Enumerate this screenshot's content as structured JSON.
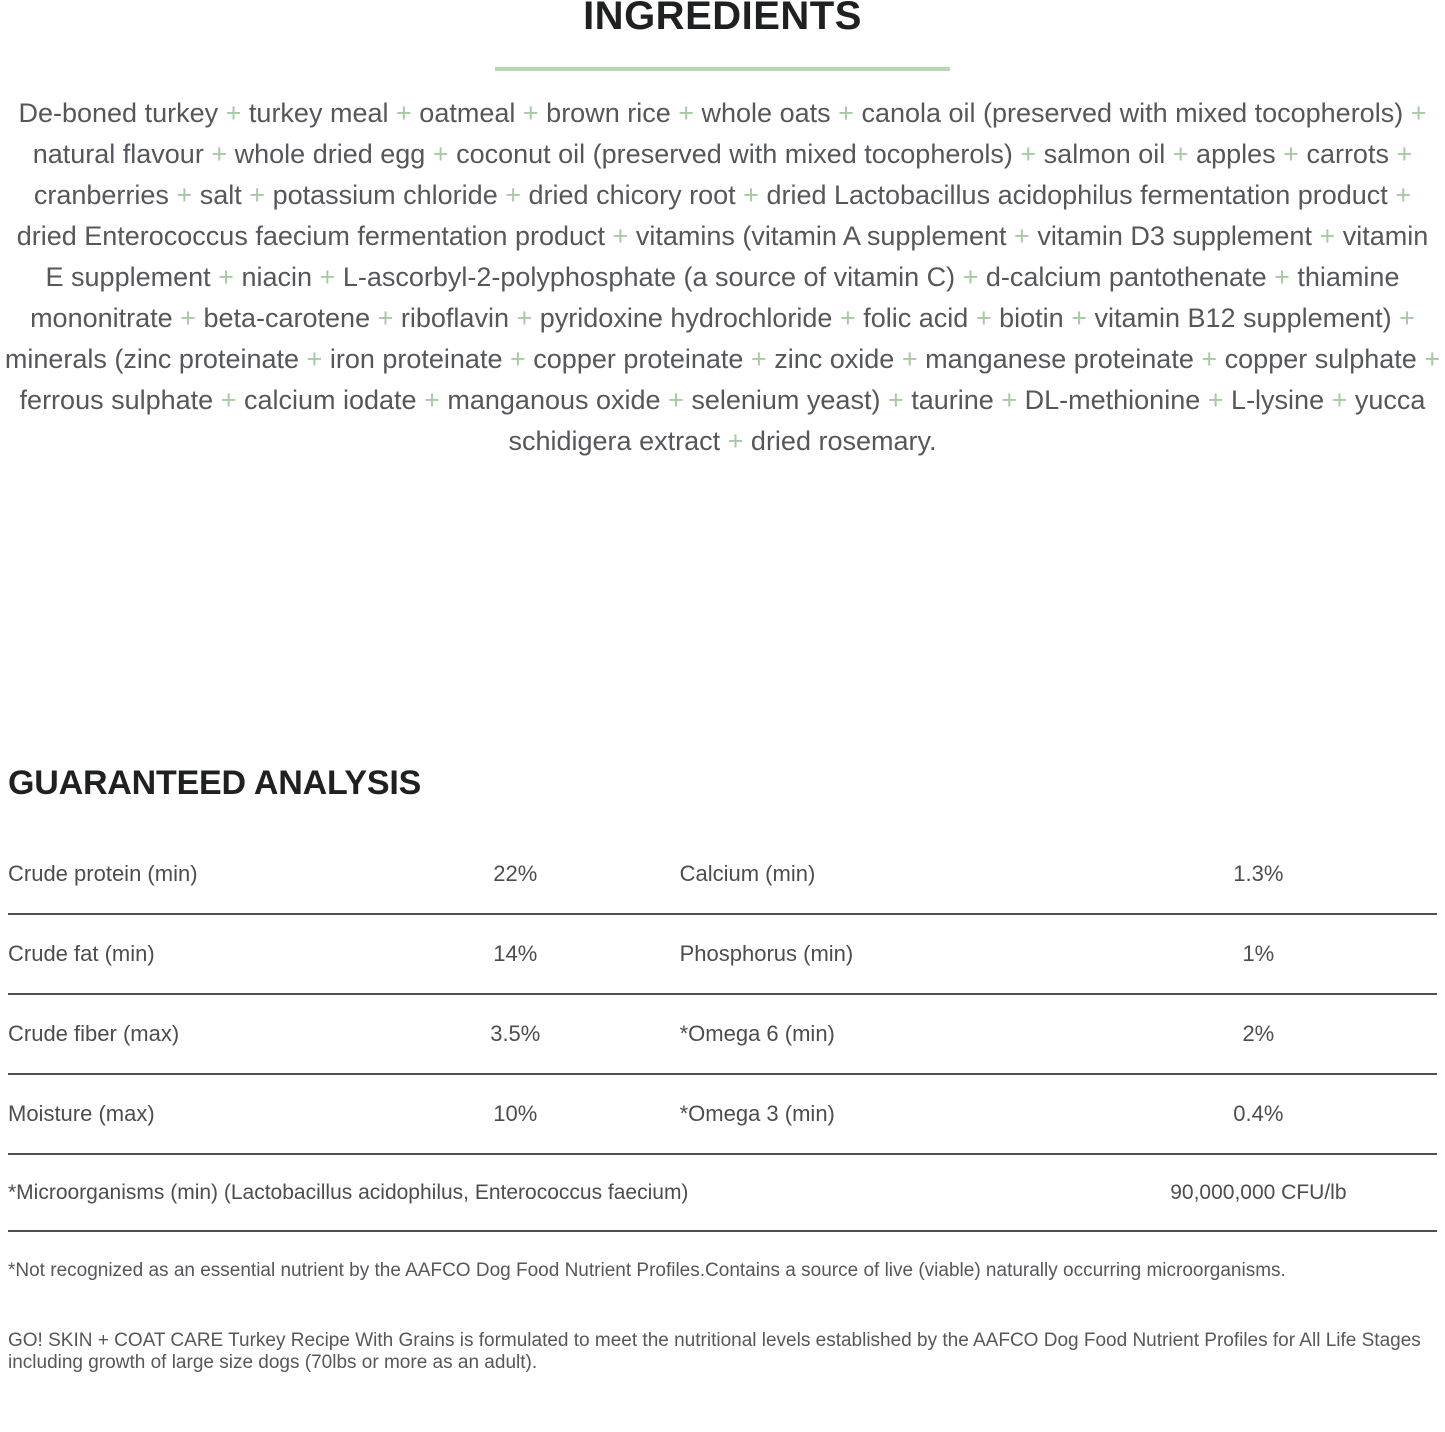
{
  "colors": {
    "accent_plus_green": "#a6caa1",
    "divider_green": "#b5d8b0",
    "heading_text": "#1f2021",
    "body_text": "#55575b",
    "table_text": "#4c4d4f",
    "table_line": "#4e4f51"
  },
  "ingredients_section": {
    "title": "INGREDIENTS",
    "items": [
      "De-boned turkey",
      "turkey meal",
      "oatmeal",
      "brown rice",
      "whole oats",
      "canola oil (preserved with mixed tocopherols)",
      "natural flavour",
      "whole dried egg",
      "coconut oil (preserved with mixed tocopherols)",
      "salmon oil",
      "apples",
      "carrots",
      "cranberries",
      "salt",
      "potassium chloride",
      "dried chicory root",
      "dried Lactobacillus acidophilus fermentation product",
      "dried Enterococcus faecium fermentation product",
      "vitamins (vitamin A supplement",
      "vitamin D3 supplement",
      "vitamin E supplement",
      "niacin",
      "L-ascorbyl-2-polyphosphate (a source of vitamin C)",
      "d-calcium pantothenate",
      "thiamine mononitrate",
      "beta-carotene",
      "riboflavin",
      "pyridoxine hydrochloride",
      "folic acid",
      "biotin",
      "vitamin B12 supplement)",
      "minerals (zinc proteinate",
      "iron proteinate",
      "copper proteinate",
      "zinc oxide",
      "manganese proteinate",
      "copper sulphate",
      "ferrous sulphate",
      "calcium iodate",
      "manganous oxide",
      "selenium yeast)",
      "taurine",
      "DL-methionine",
      "L-lysine",
      "yucca schidigera extract",
      "dried rosemary."
    ]
  },
  "analysis_section": {
    "title": "GUARANTEED ANALYSIS",
    "rows": [
      {
        "label1": "Crude protein (min)",
        "value1": "22%",
        "label2": "Calcium (min)",
        "value2": "1.3%"
      },
      {
        "label1": "Crude fat (min)",
        "value1": "14%",
        "label2": "Phosphorus (min)",
        "value2": "1%"
      },
      {
        "label1": "Crude fiber (max)",
        "value1": "3.5%",
        "label2": "*Omega 6 (min)",
        "value2": "2%"
      },
      {
        "label1": "Moisture (max)",
        "value1": "10%",
        "label2": "*Omega 3 (min)",
        "value2": "0.4%"
      }
    ],
    "microorganisms_row": {
      "label": "*Microorganisms (min) (Lactobacillus acidophilus, Enterococcus faecium)",
      "value": "90,000,000 CFU/lb"
    },
    "footnotes": [
      "*Not recognized as an essential nutrient by the AAFCO Dog Food Nutrient Profiles.Contains a source of live (viable) naturally occurring microorganisms.",
      "GO! SKIN + COAT CARE Turkey Recipe With Grains is formulated to meet the nutritional levels established by the AAFCO Dog Food Nutrient Profiles for All Life Stages including growth of large size dogs (70lbs or more as an adult)."
    ]
  }
}
